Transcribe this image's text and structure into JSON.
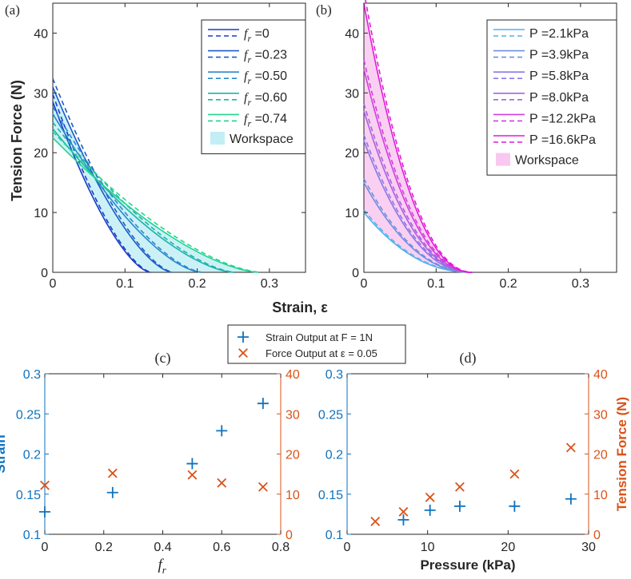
{
  "chart_data": [
    {
      "id": "a",
      "panel_label": "(a)",
      "type": "line",
      "xlim": [
        0,
        0.35
      ],
      "ylim": [
        0,
        45
      ],
      "xticks": [
        "0",
        "0.1",
        "0.2",
        "0.3"
      ],
      "yticks": [
        "0",
        "10",
        "20",
        "30",
        "40"
      ],
      "ylabel": "Tension Force (N)",
      "legend_position": "top-right",
      "series": [
        {
          "name": "f_r =0",
          "var": "f",
          "sub": "r",
          "suffix": " =0",
          "color": "#1a3cc8",
          "f0": 28.5,
          "xmax": 0.135
        },
        {
          "name": "f_r =0.23",
          "var": "f",
          "sub": "r",
          "suffix": " =0.23",
          "color": "#1e5bc6",
          "f0": 31,
          "xmax": 0.165
        },
        {
          "name": "f_r =0.50",
          "var": "f",
          "sub": "r",
          "suffix": " =0.50",
          "color": "#2a88cc",
          "f0": 26.5,
          "xmax": 0.205
        },
        {
          "name": "f_r =0.60",
          "var": "f",
          "sub": "r",
          "suffix": " =0.60",
          "color": "#1db3a6",
          "f0": 24,
          "xmax": 0.25
        },
        {
          "name": "f_r =0.74",
          "var": "f",
          "sub": "r",
          "suffix": " =0.74",
          "color": "#22d48e",
          "f0": 22.5,
          "xmax": 0.285
        }
      ],
      "workspace": {
        "name": "Workspace",
        "color": "#c2eef6"
      }
    },
    {
      "id": "b",
      "panel_label": "(b)",
      "type": "line",
      "xlim": [
        0,
        0.35
      ],
      "ylim": [
        0,
        45
      ],
      "xticks": [
        "0",
        "0.1",
        "0.2",
        "0.3"
      ],
      "yticks": [
        "0",
        "10",
        "20",
        "30",
        "40"
      ],
      "xlabel": "Strain, ε",
      "legend_position": "top-right",
      "series": [
        {
          "name": "P =2.1kPa",
          "color": "#4fb4ee",
          "f0": 10,
          "xmax": 0.15
        },
        {
          "name": "P =3.9kPa",
          "color": "#6f8fe0",
          "f0": 15,
          "xmax": 0.15
        },
        {
          "name": "P =5.8kPa",
          "color": "#8a78e6",
          "f0": 22,
          "xmax": 0.15
        },
        {
          "name": "P =8.0kPa",
          "color": "#a862de",
          "f0": 27,
          "xmax": 0.15
        },
        {
          "name": "P =12.2kPa",
          "color": "#d23ee0",
          "f0": 34,
          "xmax": 0.15
        },
        {
          "name": "P =16.6kPa",
          "color": "#e21ad8",
          "f0": 45,
          "xmax": 0.15
        }
      ],
      "workspace": {
        "name": "Workspace",
        "color": "#f8c8f0"
      }
    },
    {
      "id": "c",
      "panel_label": "(c)",
      "type": "scatter",
      "xlim": [
        0,
        0.8
      ],
      "ylim_left": [
        0.1,
        0.3
      ],
      "ylim_right": [
        0,
        40
      ],
      "xticks": [
        "0",
        "0.2",
        "0.4",
        "0.6",
        "0.8"
      ],
      "yticks_left": [
        "0.1",
        "0.15",
        "0.2",
        "0.25",
        "0.3"
      ],
      "yticks_right": [
        "0",
        "10",
        "20",
        "30",
        "40"
      ],
      "xlabel_var": "f",
      "xlabel_sub": "r",
      "ylabel_left": "Strain",
      "series": [
        {
          "name": "Strain Output at F = 1N",
          "marker": "+",
          "axis": "left",
          "color": "#0f72bd",
          "x": [
            0,
            0.23,
            0.5,
            0.6,
            0.74
          ],
          "y": [
            0.128,
            0.152,
            0.188,
            0.229,
            0.263
          ]
        },
        {
          "name": "Force Output at ε = 0.05",
          "marker": "x",
          "axis": "right",
          "color": "#d95319",
          "x": [
            0,
            0.23,
            0.5,
            0.6,
            0.74
          ],
          "y": [
            12.2,
            15.2,
            14.8,
            12.8,
            11.8
          ]
        }
      ]
    },
    {
      "id": "d",
      "panel_label": "(d)",
      "type": "scatter",
      "xlim": [
        0,
        30
      ],
      "ylim_left": [
        0.1,
        0.3
      ],
      "ylim_right": [
        0,
        40
      ],
      "xticks": [
        "0",
        "10",
        "20",
        "30"
      ],
      "yticks_left": [
        "0.1",
        "0.15",
        "0.2",
        "0.25",
        "0.3"
      ],
      "yticks_right": [
        "0",
        "10",
        "20",
        "30",
        "40"
      ],
      "xlabel": "Pressure (kPa)",
      "ylabel_right": "Tension Force (N)",
      "series": [
        {
          "name": "Strain Output at F = 1N",
          "marker": "+",
          "axis": "left",
          "color": "#0f72bd",
          "x": [
            7,
            10.3,
            14,
            20.8,
            27.8
          ],
          "y": [
            0.118,
            0.13,
            0.135,
            0.135,
            0.144
          ]
        },
        {
          "name": "Force Output at ε = 0.05",
          "marker": "x",
          "axis": "right",
          "color": "#d95319",
          "x": [
            3.5,
            7,
            10.3,
            14,
            20.8,
            27.8
          ],
          "y": [
            3.2,
            5.6,
            9.2,
            11.8,
            15.0,
            21.6
          ]
        }
      ]
    }
  ],
  "shared_legend": [
    {
      "label": "Strain Output at F = 1N",
      "marker": "+",
      "color": "#0f72bd"
    },
    {
      "label": "Force Output at ε = 0.05",
      "marker": "x",
      "color": "#d95319"
    }
  ],
  "colors": {
    "axis": "#262626",
    "left_axis_c_d": "#0f72bd",
    "right_axis_c_d": "#d95319"
  }
}
